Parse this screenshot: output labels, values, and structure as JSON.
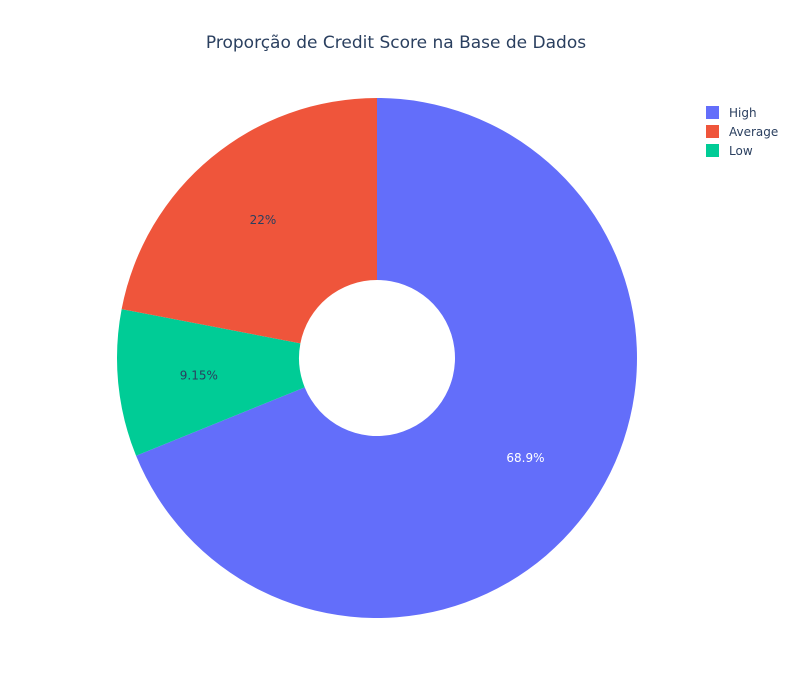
{
  "chart_data": {
    "type": "pie",
    "hole": true,
    "title": "Proporção de Credit Score na Base de Dados",
    "slices": [
      {
        "label": "High",
        "value": 68.9,
        "text": "68.9%",
        "color": "#636efa",
        "text_color": "#ffffff"
      },
      {
        "label": "Low",
        "value": 9.15,
        "text": "9.15%",
        "color": "#00cc96",
        "text_color": "#2a3f5f"
      },
      {
        "label": "Average",
        "value": 22,
        "text": "22%",
        "color": "#ef553b",
        "text_color": "#2a3f5f"
      }
    ],
    "legend": {
      "placement": "top-right",
      "items": [
        {
          "label": "High",
          "color": "#636efa"
        },
        {
          "label": "Average",
          "color": "#ef553b"
        },
        {
          "label": "Low",
          "color": "#00cc96"
        }
      ]
    }
  }
}
